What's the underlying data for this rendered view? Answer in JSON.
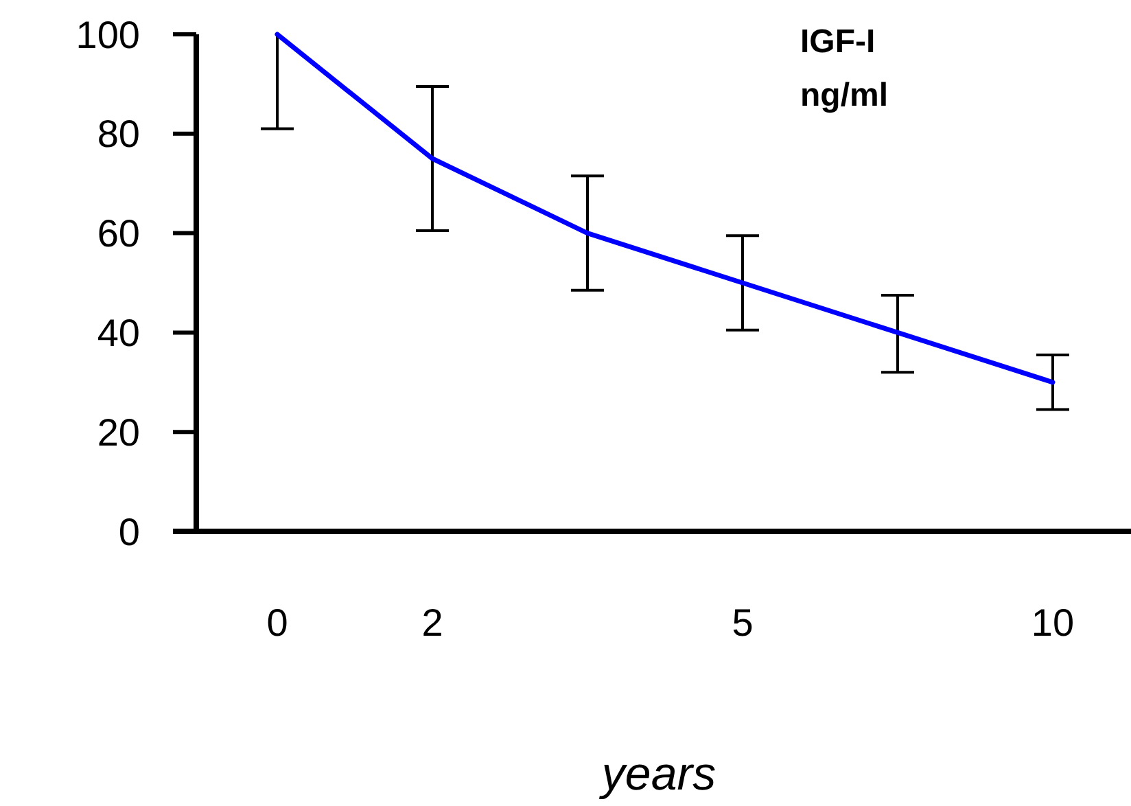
{
  "chart_data": {
    "type": "line",
    "title": "IGF-I",
    "subtitle": "ng/ml",
    "xlabel": "years",
    "categories": [
      "0",
      "2",
      null,
      "5",
      null,
      "10"
    ],
    "series": [
      {
        "color": "#0000ff",
        "values": [
          100,
          75,
          60,
          50,
          40,
          30
        ],
        "errors": [
          [
            81,
            100
          ],
          [
            60.5,
            89.5
          ],
          [
            48.5,
            71.5
          ],
          [
            40.5,
            59.5
          ],
          [
            32,
            47.5
          ],
          [
            24.5,
            35.5
          ]
        ]
      }
    ],
    "ylim": [
      0,
      100
    ],
    "yticks": [
      0,
      20,
      40,
      60,
      80,
      100
    ],
    "grid": false,
    "marker": "none",
    "line_style": "solid"
  }
}
